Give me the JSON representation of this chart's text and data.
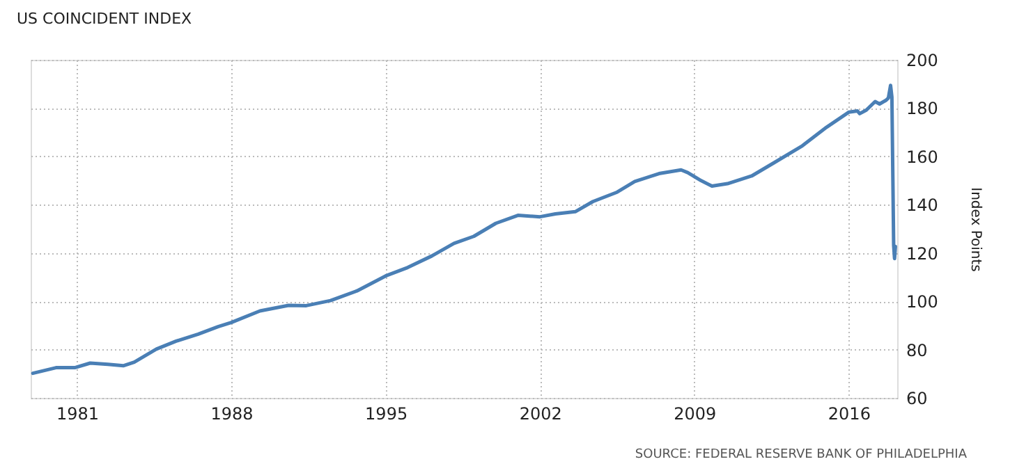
{
  "chart_data": {
    "type": "line",
    "title": "US COINCIDENT INDEX",
    "ylabel": "Index Points",
    "x": [
      1979.0,
      1980.05,
      1980.9,
      1981.6,
      1982.4,
      1983.1,
      1983.6,
      1984.6,
      1985.5,
      1986.5,
      1987.4,
      1988.0,
      1989.3,
      1990.6,
      1991.4,
      1992.5,
      1993.7,
      1995.0,
      1996.0,
      1997.1,
      1998.1,
      1999.0,
      2000.0,
      2001.0,
      2002.0,
      2002.7,
      2003.6,
      2004.4,
      2005.5,
      2006.3,
      2007.4,
      2008.4,
      2008.7,
      2009.3,
      2009.8,
      2010.5,
      2011.6,
      2012.6,
      2013.9,
      2015.0,
      2016.0,
      2016.4,
      2016.5,
      2016.8,
      2017.2,
      2017.4,
      2017.7,
      2017.8,
      2017.9,
      2017.96,
      2018.04,
      2018.08,
      2018.12
    ],
    "series": [
      {
        "color": "#4a7fb5",
        "values": [
          70.2,
          72.5,
          72.5,
          74.4,
          73.9,
          73.3,
          74.8,
          80.2,
          83.5,
          86.4,
          89.5,
          91.2,
          96.0,
          98.3,
          98.2,
          100.3,
          104.3,
          110.5,
          114.0,
          118.8,
          124.0,
          126.9,
          132.3,
          135.6,
          135.0,
          136.2,
          137.1,
          141.3,
          145.2,
          149.6,
          152.9,
          154.4,
          153.3,
          150.0,
          147.7,
          148.7,
          151.9,
          157.3,
          164.4,
          172.1,
          178.3,
          178.8,
          177.7,
          179.2,
          182.7,
          181.7,
          183.3,
          184.2,
          189.4,
          184.6,
          123.1,
          117.7,
          122.7
        ]
      }
    ],
    "xlim": [
      1978.9,
      2018.2
    ],
    "xticks": [
      1981,
      1988,
      1995,
      2002,
      2009,
      2016
    ],
    "ylim": [
      60,
      200
    ],
    "yticks": [
      60,
      80,
      100,
      120,
      140,
      160,
      180,
      200
    ],
    "grid": true,
    "annotations": [
      "SOURCE: FEDERAL RESERVE BANK OF PHILADELPHIA"
    ]
  }
}
